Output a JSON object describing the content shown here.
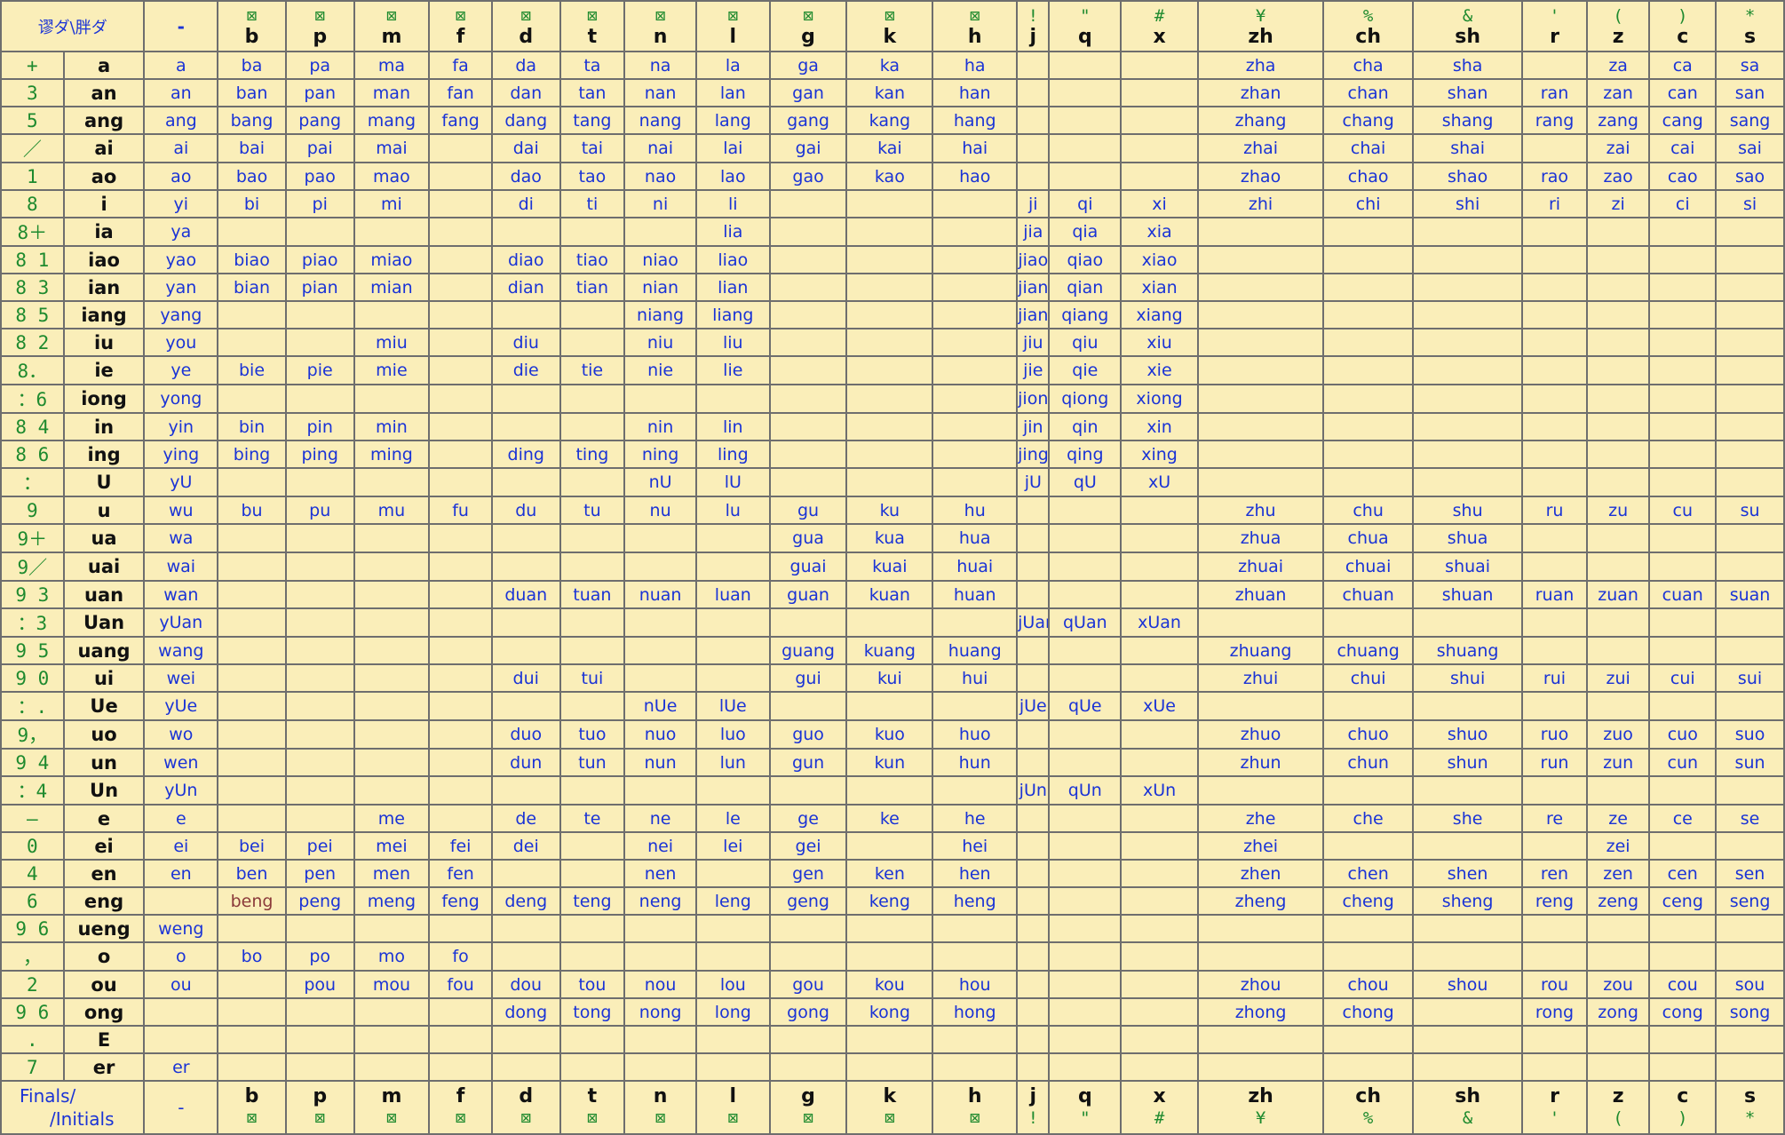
{
  "header": {
    "corner_label": "谬ダ\\胖ダ",
    "zero_initial_symbol": "-",
    "initials": [
      {
        "sym": "⊠",
        "label": "b"
      },
      {
        "sym": "⊠",
        "label": "p"
      },
      {
        "sym": "⊠",
        "label": "m"
      },
      {
        "sym": "⊠",
        "label": "f"
      },
      {
        "sym": "⊠",
        "label": "d"
      },
      {
        "sym": "⊠",
        "label": "t"
      },
      {
        "sym": "⊠",
        "label": "n"
      },
      {
        "sym": "⊠",
        "label": "l"
      },
      {
        "sym": "⊠",
        "label": "g"
      },
      {
        "sym": "⊠",
        "label": "k"
      },
      {
        "sym": "⊠",
        "label": "h"
      },
      {
        "sym": "!",
        "label": "j"
      },
      {
        "sym": "\"",
        "label": "q"
      },
      {
        "sym": "#",
        "label": "x"
      },
      {
        "sym": "¥",
        "label": "zh"
      },
      {
        "sym": "%",
        "label": "ch"
      },
      {
        "sym": "&",
        "label": "sh"
      },
      {
        "sym": "'",
        "label": "r"
      },
      {
        "sym": "(",
        "label": "z"
      },
      {
        "sym": ")",
        "label": "c"
      },
      {
        "sym": "*",
        "label": "s"
      }
    ]
  },
  "footer": {
    "label_line1": "Finals/",
    "label_line2": "/Initials",
    "zero_initial_symbol": "-"
  },
  "rows": [
    {
      "code": "+",
      "final": "a",
      "cells": [
        "a",
        "ba",
        "pa",
        "ma",
        "fa",
        "da",
        "ta",
        "na",
        "la",
        "ga",
        "ka",
        "ha",
        "",
        "",
        "",
        "zha",
        "cha",
        "sha",
        "",
        "za",
        "ca",
        "sa"
      ]
    },
    {
      "code": "3",
      "final": "an",
      "cells": [
        "an",
        "ban",
        "pan",
        "man",
        "fan",
        "dan",
        "tan",
        "nan",
        "lan",
        "gan",
        "kan",
        "han",
        "",
        "",
        "",
        "zhan",
        "chan",
        "shan",
        "ran",
        "zan",
        "can",
        "san"
      ]
    },
    {
      "code": "5",
      "final": "ang",
      "cells": [
        "ang",
        "bang",
        "pang",
        "mang",
        "fang",
        "dang",
        "tang",
        "nang",
        "lang",
        "gang",
        "kang",
        "hang",
        "",
        "",
        "",
        "zhang",
        "chang",
        "shang",
        "rang",
        "zang",
        "cang",
        "sang"
      ]
    },
    {
      "code": "／",
      "final": "ai",
      "cells": [
        "ai",
        "bai",
        "pai",
        "mai",
        "",
        "dai",
        "tai",
        "nai",
        "lai",
        "gai",
        "kai",
        "hai",
        "",
        "",
        "",
        "zhai",
        "chai",
        "shai",
        "",
        "zai",
        "cai",
        "sai"
      ]
    },
    {
      "code": "1",
      "final": "ao",
      "cells": [
        "ao",
        "bao",
        "pao",
        "mao",
        "",
        "dao",
        "tao",
        "nao",
        "lao",
        "gao",
        "kao",
        "hao",
        "",
        "",
        "",
        "zhao",
        "chao",
        "shao",
        "rao",
        "zao",
        "cao",
        "sao"
      ]
    },
    {
      "code": "8",
      "final": "i",
      "cells": [
        "yi",
        "bi",
        "pi",
        "mi",
        "",
        "di",
        "ti",
        "ni",
        "li",
        "",
        "",
        "",
        "ji",
        "qi",
        "xi",
        "zhi",
        "chi",
        "shi",
        "ri",
        "zi",
        "ci",
        "si"
      ]
    },
    {
      "code": "8＋",
      "final": "ia",
      "cells": [
        "ya",
        "",
        "",
        "",
        "",
        "",
        "",
        "",
        "lia",
        "",
        "",
        "",
        "jia",
        "qia",
        "xia",
        "",
        "",
        "",
        "",
        "",
        "",
        ""
      ]
    },
    {
      "code": "8 1",
      "final": "iao",
      "cells": [
        "yao",
        "biao",
        "piao",
        "miao",
        "",
        "diao",
        "tiao",
        "niao",
        "liao",
        "",
        "",
        "",
        "jiao",
        "qiao",
        "xiao",
        "",
        "",
        "",
        "",
        "",
        "",
        ""
      ]
    },
    {
      "code": "8 3",
      "final": "ian",
      "cells": [
        "yan",
        "bian",
        "pian",
        "mian",
        "",
        "dian",
        "tian",
        "nian",
        "lian",
        "",
        "",
        "",
        "jian",
        "qian",
        "xian",
        "",
        "",
        "",
        "",
        "",
        "",
        ""
      ]
    },
    {
      "code": "8 5",
      "final": "iang",
      "cells": [
        "yang",
        "",
        "",
        "",
        "",
        "",
        "",
        "niang",
        "liang",
        "",
        "",
        "",
        "jiang",
        "qiang",
        "xiang",
        "",
        "",
        "",
        "",
        "",
        "",
        ""
      ]
    },
    {
      "code": "8 2",
      "final": "iu",
      "cells": [
        "you",
        "",
        "",
        "miu",
        "",
        "diu",
        "",
        "niu",
        "liu",
        "",
        "",
        "",
        "jiu",
        "qiu",
        "xiu",
        "",
        "",
        "",
        "",
        "",
        "",
        ""
      ]
    },
    {
      "code": "8．",
      "final": "ie",
      "cells": [
        "ye",
        "bie",
        "pie",
        "mie",
        "",
        "die",
        "tie",
        "nie",
        "lie",
        "",
        "",
        "",
        "jie",
        "qie",
        "xie",
        "",
        "",
        "",
        "",
        "",
        "",
        ""
      ]
    },
    {
      "code": "：6",
      "final": "iong",
      "cells": [
        "yong",
        "",
        "",
        "",
        "",
        "",
        "",
        "",
        "",
        "",
        "",
        "",
        "jiong",
        "qiong",
        "xiong",
        "",
        "",
        "",
        "",
        "",
        "",
        ""
      ]
    },
    {
      "code": "8 4",
      "final": "in",
      "cells": [
        "yin",
        "bin",
        "pin",
        "min",
        "",
        "",
        "",
        "nin",
        "lin",
        "",
        "",
        "",
        "jin",
        "qin",
        "xin",
        "",
        "",
        "",
        "",
        "",
        "",
        ""
      ]
    },
    {
      "code": "8 6",
      "final": "ing",
      "cells": [
        "ying",
        "bing",
        "ping",
        "ming",
        "",
        "ding",
        "ting",
        "ning",
        "ling",
        "",
        "",
        "",
        "jing",
        "qing",
        "xing",
        "",
        "",
        "",
        "",
        "",
        "",
        ""
      ]
    },
    {
      "code": "：",
      "final": "U",
      "cells": [
        "yU",
        "",
        "",
        "",
        "",
        "",
        "",
        "nU",
        "lU",
        "",
        "",
        "",
        "jU",
        "qU",
        "xU",
        "",
        "",
        "",
        "",
        "",
        "",
        ""
      ]
    },
    {
      "code": "9",
      "final": "u",
      "cells": [
        "wu",
        "bu",
        "pu",
        "mu",
        "fu",
        "du",
        "tu",
        "nu",
        "lu",
        "gu",
        "ku",
        "hu",
        "",
        "",
        "",
        "zhu",
        "chu",
        "shu",
        "ru",
        "zu",
        "cu",
        "su"
      ]
    },
    {
      "code": "9＋",
      "final": "ua",
      "cells": [
        "wa",
        "",
        "",
        "",
        "",
        "",
        "",
        "",
        "",
        "gua",
        "kua",
        "hua",
        "",
        "",
        "",
        "zhua",
        "chua",
        "shua",
        "",
        "",
        "",
        ""
      ]
    },
    {
      "code": "9／",
      "final": "uai",
      "cells": [
        "wai",
        "",
        "",
        "",
        "",
        "",
        "",
        "",
        "",
        "guai",
        "kuai",
        "huai",
        "",
        "",
        "",
        "zhuai",
        "chuai",
        "shuai",
        "",
        "",
        "",
        ""
      ]
    },
    {
      "code": "9 3",
      "final": "uan",
      "cells": [
        "wan",
        "",
        "",
        "",
        "",
        "duan",
        "tuan",
        "nuan",
        "luan",
        "guan",
        "kuan",
        "huan",
        "",
        "",
        "",
        "zhuan",
        "chuan",
        "shuan",
        "ruan",
        "zuan",
        "cuan",
        "suan"
      ]
    },
    {
      "code": "：3",
      "final": "Uan",
      "cells": [
        "yUan",
        "",
        "",
        "",
        "",
        "",
        "",
        "",
        "",
        "",
        "",
        "",
        "jUan",
        "qUan",
        "xUan",
        "",
        "",
        "",
        "",
        "",
        "",
        ""
      ]
    },
    {
      "code": "9 5",
      "final": "uang",
      "cells": [
        "wang",
        "",
        "",
        "",
        "",
        "",
        "",
        "",
        "",
        "guang",
        "kuang",
        "huang",
        "",
        "",
        "",
        "zhuang",
        "chuang",
        "shuang",
        "",
        "",
        "",
        ""
      ]
    },
    {
      "code": "9 0",
      "final": "ui",
      "cells": [
        "wei",
        "",
        "",
        "",
        "",
        "dui",
        "tui",
        "",
        "",
        "gui",
        "kui",
        "hui",
        "",
        "",
        "",
        "zhui",
        "chui",
        "shui",
        "rui",
        "zui",
        "cui",
        "sui"
      ]
    },
    {
      "code": "：.",
      "final": "Ue",
      "cells": [
        "yUe",
        "",
        "",
        "",
        "",
        "",
        "",
        "nUe",
        "lUe",
        "",
        "",
        "",
        "jUe",
        "qUe",
        "xUe",
        "",
        "",
        "",
        "",
        "",
        "",
        ""
      ]
    },
    {
      "code": "9，",
      "final": "uo",
      "cells": [
        "wo",
        "",
        "",
        "",
        "",
        "duo",
        "tuo",
        "nuo",
        "luo",
        "guo",
        "kuo",
        "huo",
        "",
        "",
        "",
        "zhuo",
        "chuo",
        "shuo",
        "ruo",
        "zuo",
        "cuo",
        "suo"
      ]
    },
    {
      "code": "9 4",
      "final": "un",
      "cells": [
        "wen",
        "",
        "",
        "",
        "",
        "dun",
        "tun",
        "nun",
        "lun",
        "gun",
        "kun",
        "hun",
        "",
        "",
        "",
        "zhun",
        "chun",
        "shun",
        "run",
        "zun",
        "cun",
        "sun"
      ]
    },
    {
      "code": "：4",
      "final": "Un",
      "cells": [
        "yUn",
        "",
        "",
        "",
        "",
        "",
        "",
        "",
        "",
        "",
        "",
        "",
        "jUn",
        "qUn",
        "xUn",
        "",
        "",
        "",
        "",
        "",
        "",
        ""
      ]
    },
    {
      "code": "—",
      "final": "e",
      "cells": [
        "e",
        "",
        "",
        "me",
        "",
        "de",
        "te",
        "ne",
        "le",
        "ge",
        "ke",
        "he",
        "",
        "",
        "",
        "zhe",
        "che",
        "she",
        "re",
        "ze",
        "ce",
        "se"
      ]
    },
    {
      "code": "0",
      "final": "ei",
      "cells": [
        "ei",
        "bei",
        "pei",
        "mei",
        "fei",
        "dei",
        "",
        "nei",
        "lei",
        "gei",
        "",
        "hei",
        "",
        "",
        "",
        "zhei",
        "",
        "",
        "",
        "zei",
        "",
        ""
      ]
    },
    {
      "code": "4",
      "final": "en",
      "cells": [
        "en",
        "ben",
        "pen",
        "men",
        "fen",
        "",
        "",
        "nen",
        "",
        "gen",
        "ken",
        "hen",
        "",
        "",
        "",
        "zhen",
        "chen",
        "shen",
        "ren",
        "zen",
        "cen",
        "sen"
      ]
    },
    {
      "code": "6",
      "final": "eng",
      "cells": [
        "",
        "beng",
        "peng",
        "meng",
        "feng",
        "deng",
        "teng",
        "neng",
        "leng",
        "geng",
        "keng",
        "heng",
        "",
        "",
        "",
        "zheng",
        "cheng",
        "sheng",
        "reng",
        "zeng",
        "ceng",
        "seng"
      ]
    },
    {
      "code": "9 6",
      "final": "ueng",
      "cells": [
        "weng",
        "",
        "",
        "",
        "",
        "",
        "",
        "",
        "",
        "",
        "",
        "",
        "",
        "",
        "",
        "",
        "",
        "",
        "",
        "",
        "",
        ""
      ]
    },
    {
      "code": "，",
      "final": "o",
      "cells": [
        "o",
        "bo",
        "po",
        "mo",
        "fo",
        "",
        "",
        "",
        "",
        "",
        "",
        "",
        "",
        "",
        "",
        "",
        "",
        "",
        "",
        "",
        "",
        ""
      ]
    },
    {
      "code": "2",
      "final": "ou",
      "cells": [
        "ou",
        "",
        "pou",
        "mou",
        "fou",
        "dou",
        "tou",
        "nou",
        "lou",
        "gou",
        "kou",
        "hou",
        "",
        "",
        "",
        "zhou",
        "chou",
        "shou",
        "rou",
        "zou",
        "cou",
        "sou"
      ]
    },
    {
      "code": "9 6",
      "final": "ong",
      "cells": [
        "",
        "",
        "",
        "",
        "",
        "dong",
        "tong",
        "nong",
        "long",
        "gong",
        "kong",
        "hong",
        "",
        "",
        "",
        "zhong",
        "chong",
        "",
        "rong",
        "zong",
        "cong",
        "song"
      ]
    },
    {
      "code": ".",
      "final": "E",
      "cells": [
        "",
        "",
        "",
        "",
        "",
        "",
        "",
        "",
        "",
        "",
        "",
        "",
        "",
        "",
        "",
        "",
        "",
        "",
        "",
        "",
        "",
        ""
      ]
    },
    {
      "code": "7",
      "final": "er",
      "cells": [
        "er",
        "",
        "",
        "",
        "",
        "",
        "",
        "",
        "",
        "",
        "",
        "",
        "",
        "",
        "",
        "",
        "",
        "",
        "",
        "",
        "",
        ""
      ]
    }
  ],
  "colors": {
    "background": "#faeeb9",
    "grid_line": "#6e6e6e",
    "pinyin_text": "#1a33d6",
    "code_text": "#1e8a2e",
    "final_text": "#111111",
    "highlight_text": "#8b3a3a"
  }
}
